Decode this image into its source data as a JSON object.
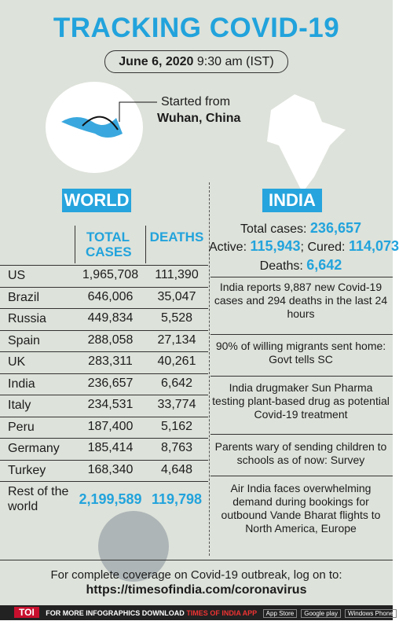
{
  "header": {
    "title": "TRACKING COVID-19",
    "date": "June 6, 2020",
    "time": "9:30 am (IST)"
  },
  "origin": {
    "label": "Started from",
    "place": "Wuhan, China"
  },
  "world": {
    "label": "WORLD",
    "table": {
      "columns": [
        "TOTAL CASES",
        "DEATHS"
      ],
      "rows": [
        [
          "US",
          "1,965,708",
          "111,390"
        ],
        [
          "Brazil",
          "646,006",
          "35,047"
        ],
        [
          "Russia",
          "449,834",
          "5,528"
        ],
        [
          "Spain",
          "288,058",
          "27,134"
        ],
        [
          "UK",
          "283,311",
          "40,261"
        ],
        [
          "India",
          "236,657",
          "6,642"
        ],
        [
          "Italy",
          "234,531",
          "33,774"
        ],
        [
          "Peru",
          "187,400",
          "5,162"
        ],
        [
          "Germany",
          "185,414",
          "8,763"
        ],
        [
          "Turkey",
          "168,340",
          "4,648"
        ],
        [
          "Rest of the world",
          "2,199,589",
          "119,798"
        ]
      ]
    }
  },
  "india": {
    "label": "INDIA",
    "total": {
      "label": "Total cases:",
      "value": "236,657"
    },
    "active": {
      "label": "Active:",
      "value": "115,943"
    },
    "separator": ";",
    "cured": {
      "label": "Cured:",
      "value": "114,073"
    },
    "deaths": {
      "label": "Deaths:",
      "value": "6,642"
    },
    "news": [
      "India reports 9,887 new Covid-19 cases and 294 deaths in the last 24 hours",
      "90% of willing migrants sent home: Govt tells SC",
      "India drugmaker Sun Pharma testing plant-based drug as potential Covid-19 treatment",
      "Parents wary of sending children to schools as of now: Survey",
      "Air India faces overwhelming demand during bookings for outbound Vande Bharat flights to North America, Europe"
    ]
  },
  "footer": {
    "text": "For complete coverage on Covid-19 outbreak, log on to:",
    "url": "https://timesofindia.com/coronavirus"
  },
  "bar": {
    "brand": "TOI",
    "promo": "FOR MORE INFOGRAPHICS DOWNLOAD",
    "app": "TIMES OF INDIA APP",
    "stores": [
      "App Store",
      "Google play",
      "Windows Phone"
    ]
  }
}
